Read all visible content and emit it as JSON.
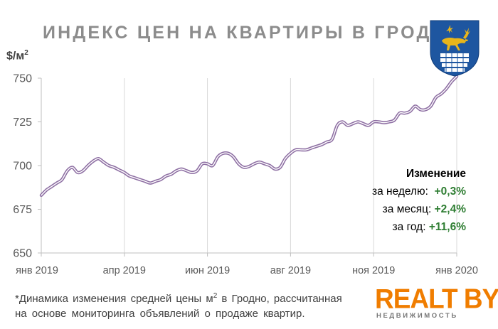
{
  "title": "ИНДЕКС ЦЕН НА КВАРТИРЫ В ГРОДНО",
  "unit_label": "$/м",
  "unit_sup": "2",
  "changes": {
    "heading": "Изменение",
    "rows": [
      {
        "label": "за неделю:",
        "value": "+0,3%"
      },
      {
        "label": "за месяц:",
        "value": "+2,4%"
      },
      {
        "label": "за год:",
        "value": "+11,6%"
      }
    ]
  },
  "footnote": {
    "line1_a": "*Динамика изменения средней цены м",
    "line1_sup": "2",
    "line1_b": " в Гродно, рассчитанная",
    "line2": "на основе мониторинга объявлений о продаже квартир."
  },
  "logo": {
    "word": "REALT BY",
    "sub": "НЕДВИЖИМОСТЬ"
  },
  "colors": {
    "line_outer": "#8e6fa3",
    "line_inner": "#ffffff",
    "grid": "#d9d9d9",
    "title": "#8c8c8c",
    "positive": "#2e7d32",
    "logo": "#f07d00",
    "crest_blue": "#1e56a0",
    "crest_gold": "#e8b51a"
  },
  "crest_icon": "grodno-coat-of-arms-icon",
  "chart_data": {
    "type": "line",
    "x_ticks": [
      "янв 2019",
      "апр 2019",
      "июн 2019",
      "авг 2019",
      "ноя 2019",
      "янв 2020"
    ],
    "x_tick_weeks": [
      0,
      13,
      26,
      39,
      52,
      65
    ],
    "ylim": [
      650,
      750
    ],
    "yticks": [
      650,
      675,
      700,
      725,
      750
    ],
    "grid": "vertical",
    "series": [
      {
        "values": [
          683,
          686,
          688,
          690,
          692,
          697,
          699,
          696,
          697,
          700,
          702.5,
          704,
          702,
          700,
          699,
          697.5,
          696,
          694,
          693,
          692,
          691,
          690,
          691,
          692,
          694,
          695,
          697,
          698,
          697,
          696,
          697,
          701,
          701,
          700,
          705,
          707,
          707,
          705,
          701,
          699,
          699.5,
          701,
          702,
          701,
          700,
          698,
          699,
          704,
          707,
          709,
          709,
          709,
          710,
          711,
          712,
          713.5,
          715,
          723,
          725,
          723,
          724,
          725,
          724,
          723,
          725,
          725,
          724.5,
          725,
          726,
          730,
          730,
          731,
          734,
          732,
          732,
          734,
          739,
          741,
          744,
          748,
          751
        ]
      }
    ]
  }
}
